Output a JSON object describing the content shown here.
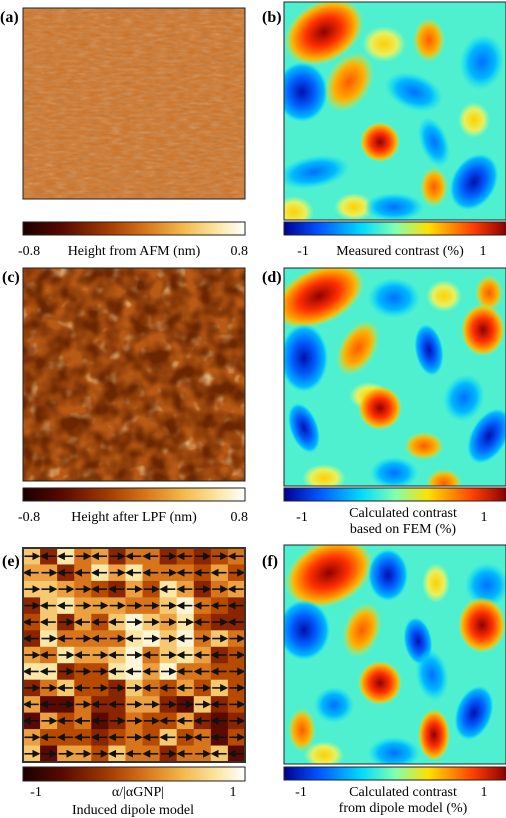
{
  "figure": {
    "panels": [
      {
        "label": "(a)",
        "kind": "afm",
        "colorbar": {
          "min_label": "-0.8",
          "max_label": "0.8",
          "title": "Height from AFM (nm)",
          "colormap": "afmhot"
        }
      },
      {
        "label": "(b)",
        "kind": "measured",
        "colorbar": {
          "min_label": "-1",
          "max_label": "1",
          "title": "Measured contrast (%)",
          "colormap": "jet"
        }
      },
      {
        "label": "(c)",
        "kind": "lpf",
        "colorbar": {
          "min_label": "-0.8",
          "max_label": "0.8",
          "title": "Height after LPF (nm)",
          "colormap": "afmhot"
        }
      },
      {
        "label": "(d)",
        "kind": "fem",
        "colorbar": {
          "min_label": "-1",
          "max_label": "1",
          "title_lines": [
            "Calculated contrast",
            "based on FEM (%)"
          ],
          "colormap": "jet"
        }
      },
      {
        "label": "(e)",
        "kind": "dipole-grid",
        "colorbar": {
          "min_label": "-1",
          "max_label": "1",
          "title": "α/|αGNP|",
          "caption": "Induced dipole model",
          "colormap": "afmhot"
        }
      },
      {
        "label": "(f)",
        "kind": "dipole-model",
        "colorbar": {
          "min_label": "-1",
          "max_label": "1",
          "title_lines": [
            "Calculated contrast",
            "from dipole model (%)"
          ],
          "colormap": "jet"
        }
      }
    ],
    "colors": {
      "afmhot": [
        "#1a0000",
        "#5a0a00",
        "#a03a00",
        "#d8741a",
        "#f4b84a",
        "#fbe7a6",
        "#ffffff"
      ],
      "jet": [
        "#00008f",
        "#0050ff",
        "#00dcff",
        "#80ffb0",
        "#ffe000",
        "#ff4000",
        "#8f0000"
      ],
      "arrow": "#111111"
    }
  }
}
